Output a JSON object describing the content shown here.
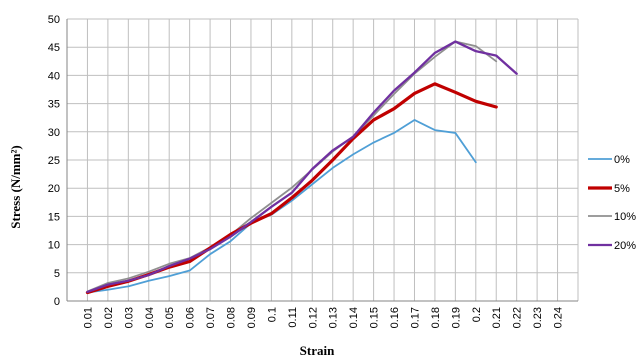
{
  "chart_data": {
    "type": "line",
    "title": "",
    "xlabel": "Strain",
    "ylabel": "Stress (N/mm²)",
    "ylim": [
      0,
      50
    ],
    "yticks": [
      "0",
      "5",
      "10",
      "15",
      "20",
      "25",
      "30",
      "35",
      "40",
      "45",
      "50"
    ],
    "categories": [
      "0.01",
      "0.02",
      "0.03",
      "0.04",
      "0.05",
      "0.06",
      "0.07",
      "0.08",
      "0.09",
      "0.1",
      "0.11",
      "0.12",
      "0.13",
      "0.14",
      "0.15",
      "0.16",
      "0.17",
      "0.18",
      "0.19",
      "0.2",
      "0.21",
      "0.22",
      "0.23",
      "0.24"
    ],
    "grid": true,
    "legend_position": "right",
    "series": [
      {
        "name": "0%",
        "color": "#4f9fd6",
        "stroke": "thin",
        "x": [
          0.01,
          0.02,
          0.03,
          0.04,
          0.05,
          0.06,
          0.07,
          0.08,
          0.09,
          0.1,
          0.11,
          0.12,
          0.13,
          0.14,
          0.15,
          0.16,
          0.17,
          0.18,
          0.19,
          0.2
        ],
        "y": [
          1.5,
          2.0,
          2.6,
          3.6,
          4.4,
          5.4,
          8.3,
          10.6,
          13.8,
          15.3,
          17.8,
          20.7,
          23.6,
          26.0,
          28.1,
          29.8,
          32.1,
          30.3,
          29.8,
          24.6
        ]
      },
      {
        "name": "5%",
        "color": "#c00000",
        "stroke": "thick",
        "x": [
          0.01,
          0.02,
          0.03,
          0.04,
          0.05,
          0.06,
          0.07,
          0.08,
          0.09,
          0.1,
          0.11,
          0.12,
          0.13,
          0.14,
          0.15,
          0.16,
          0.17,
          0.18,
          0.19,
          0.2,
          0.21
        ],
        "y": [
          1.5,
          2.6,
          3.5,
          4.7,
          6.0,
          7.0,
          9.4,
          11.8,
          13.8,
          15.5,
          18.3,
          21.4,
          25.0,
          28.8,
          32.1,
          34.1,
          36.8,
          38.5,
          37.0,
          35.4,
          34.4
        ]
      },
      {
        "name": "10%",
        "color": "#8f8f8f",
        "stroke": "thin",
        "x": [
          0.01,
          0.02,
          0.03,
          0.04,
          0.05,
          0.06,
          0.07,
          0.08,
          0.09,
          0.1,
          0.11,
          0.12,
          0.13,
          0.14,
          0.15,
          0.16,
          0.17,
          0.18,
          0.19,
          0.2,
          0.21
        ],
        "y": [
          1.7,
          3.2,
          4.0,
          5.2,
          6.6,
          7.6,
          9.5,
          11.7,
          14.7,
          17.4,
          20.1,
          23.3,
          26.5,
          29.2,
          32.9,
          36.7,
          40.3,
          43.3,
          46.0,
          45.2,
          42.5
        ]
      },
      {
        "name": "20%",
        "color": "#7030a0",
        "stroke": "medium",
        "x": [
          0.01,
          0.02,
          0.03,
          0.04,
          0.05,
          0.06,
          0.07,
          0.08,
          0.09,
          0.1,
          0.11,
          0.12,
          0.13,
          0.14,
          0.15,
          0.16,
          0.17,
          0.18,
          0.19,
          0.2,
          0.21,
          0.22
        ],
        "y": [
          1.6,
          2.9,
          3.6,
          4.6,
          6.2,
          7.5,
          9.2,
          11.4,
          14.0,
          16.7,
          19.2,
          23.4,
          26.7,
          29.1,
          33.4,
          37.3,
          40.5,
          44.0,
          46.0,
          44.3,
          43.5,
          40.3
        ]
      }
    ]
  }
}
